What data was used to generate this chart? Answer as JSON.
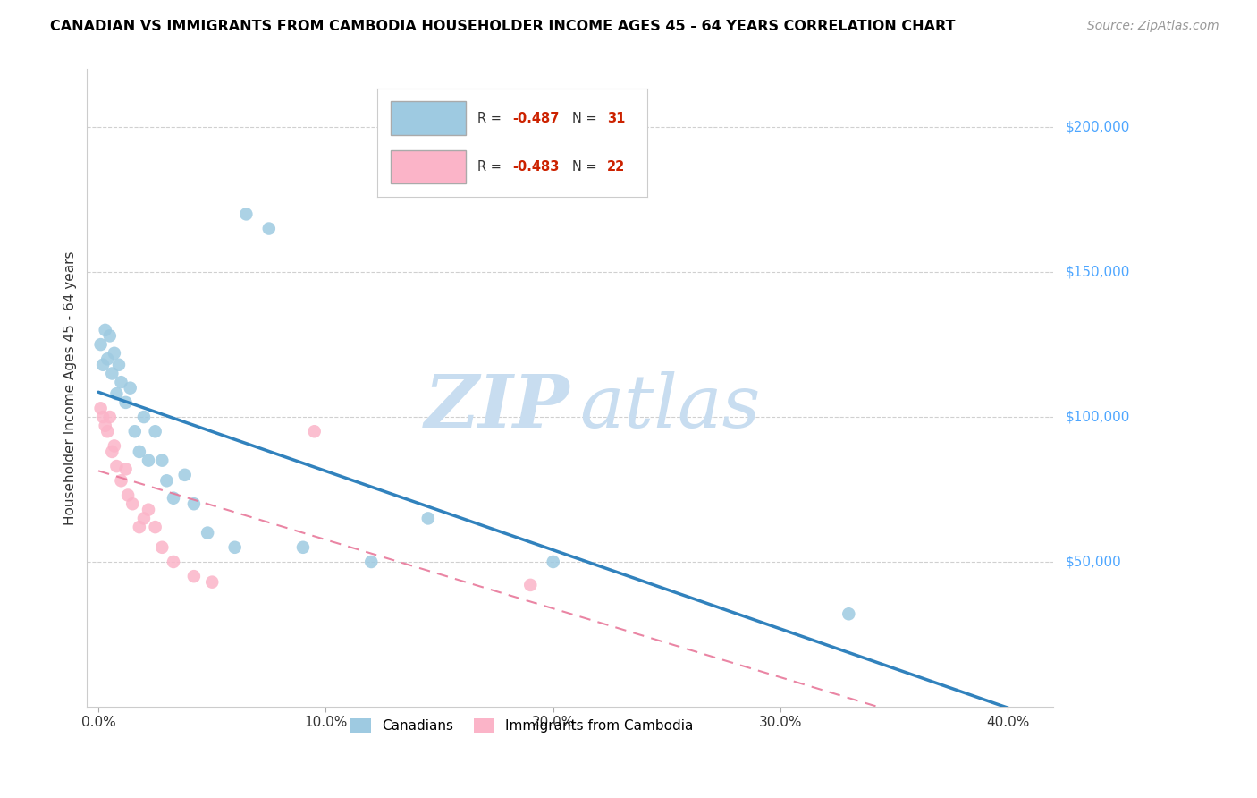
{
  "title": "CANADIAN VS IMMIGRANTS FROM CAMBODIA HOUSEHOLDER INCOME AGES 45 - 64 YEARS CORRELATION CHART",
  "source": "Source: ZipAtlas.com",
  "ylabel": "Householder Income Ages 45 - 64 years",
  "xlabel_ticks": [
    "0.0%",
    "10.0%",
    "20.0%",
    "30.0%",
    "40.0%"
  ],
  "xlabel_vals": [
    0.0,
    0.1,
    0.2,
    0.3,
    0.4
  ],
  "ytick_labels": [
    "$50,000",
    "$100,000",
    "$150,000",
    "$200,000"
  ],
  "ytick_vals": [
    50000,
    100000,
    150000,
    200000
  ],
  "ylim": [
    0,
    220000
  ],
  "xlim": [
    -0.005,
    0.42
  ],
  "legend_label1": "Canadians",
  "legend_label2": "Immigrants from Cambodia",
  "r1": -0.487,
  "n1": 31,
  "r2": -0.483,
  "n2": 22,
  "canadians_x": [
    0.001,
    0.002,
    0.003,
    0.004,
    0.005,
    0.006,
    0.007,
    0.008,
    0.009,
    0.01,
    0.012,
    0.014,
    0.016,
    0.018,
    0.02,
    0.022,
    0.025,
    0.028,
    0.03,
    0.033,
    0.038,
    0.042,
    0.048,
    0.06,
    0.065,
    0.075,
    0.09,
    0.12,
    0.145,
    0.2,
    0.33
  ],
  "canadians_y": [
    125000,
    118000,
    130000,
    120000,
    128000,
    115000,
    122000,
    108000,
    118000,
    112000,
    105000,
    110000,
    95000,
    88000,
    100000,
    85000,
    95000,
    85000,
    78000,
    72000,
    80000,
    70000,
    60000,
    55000,
    170000,
    165000,
    55000,
    50000,
    65000,
    50000,
    32000
  ],
  "cambodia_x": [
    0.001,
    0.002,
    0.003,
    0.004,
    0.005,
    0.006,
    0.007,
    0.008,
    0.01,
    0.012,
    0.013,
    0.015,
    0.018,
    0.02,
    0.022,
    0.025,
    0.028,
    0.033,
    0.042,
    0.05,
    0.095,
    0.19
  ],
  "cambodia_y": [
    103000,
    100000,
    97000,
    95000,
    100000,
    88000,
    90000,
    83000,
    78000,
    82000,
    73000,
    70000,
    62000,
    65000,
    68000,
    62000,
    55000,
    50000,
    45000,
    43000,
    95000,
    42000
  ],
  "blue_color": "#9ecae1",
  "pink_color": "#fbb4c8",
  "blue_line_color": "#3182bd",
  "pink_line_color": "#e8789a",
  "pink_line_dash": [
    6,
    4
  ],
  "background_color": "#ffffff",
  "grid_color": "#d0d0d0",
  "right_axis_color": "#4da6ff",
  "watermark_color_zip": "#c8ddf0",
  "watermark_color_atlas": "#c8ddf0"
}
